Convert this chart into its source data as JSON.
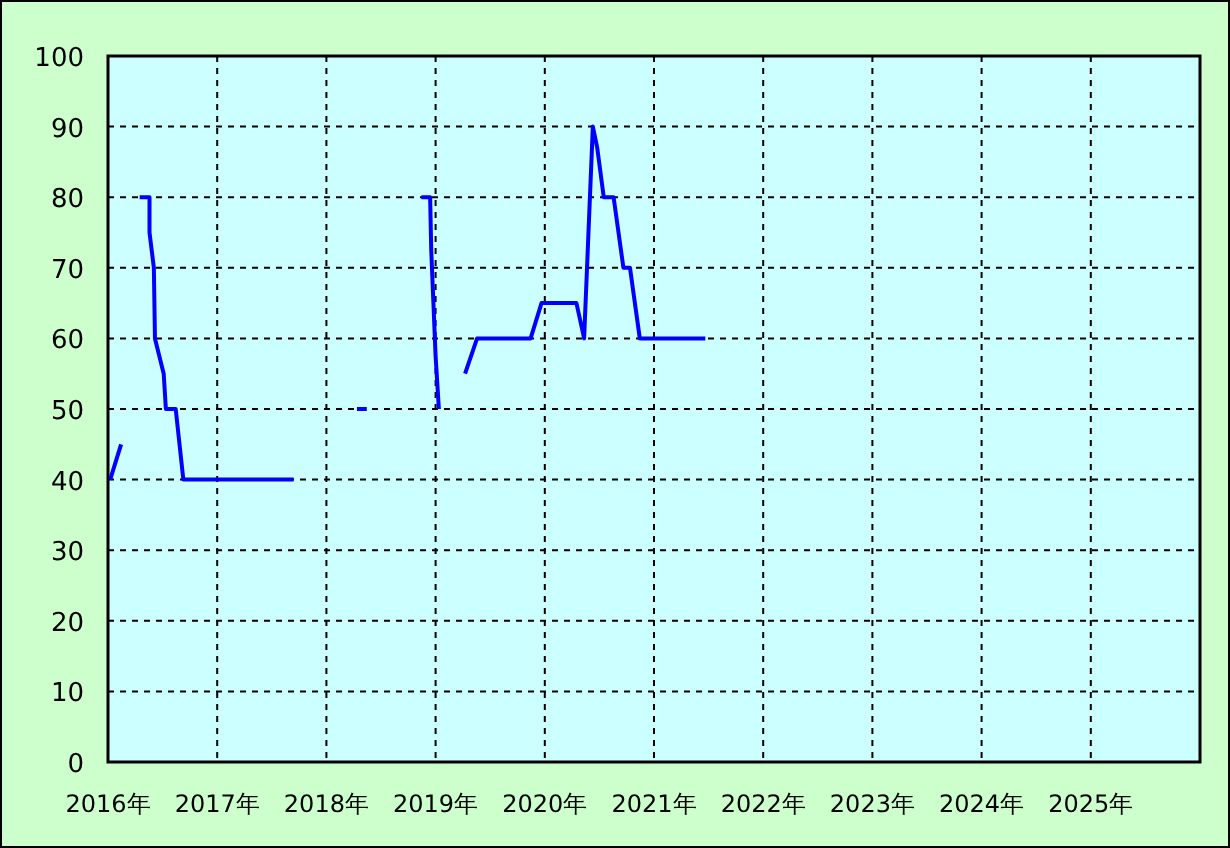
{
  "chart_data": {
    "type": "line",
    "x": [
      2016.02,
      2016.12,
      null,
      2016.29,
      2016.38,
      2016.38,
      2016.42,
      2016.43,
      2016.51,
      2016.53,
      2016.62,
      2016.69,
      2017.7,
      null,
      2018.28,
      2018.37,
      null,
      2018.87,
      2018.95,
      2018.96,
      2018.98,
      2019.0,
      2019.03,
      null,
      2019.27,
      2019.38,
      2019.87,
      2019.97,
      2020.29,
      2020.36,
      2020.44,
      2020.48,
      2020.54,
      2020.63,
      2020.72,
      2020.78,
      2020.87,
      2021.47
    ],
    "series": [
      {
        "color": "#0000ff",
        "values": [
          40,
          45,
          null,
          80,
          80,
          75,
          70,
          60,
          55,
          50,
          50,
          40,
          40,
          null,
          50,
          50,
          null,
          80,
          80,
          72.5,
          65,
          57.5,
          50,
          null,
          55,
          60,
          60,
          65,
          65,
          60,
          90,
          87,
          80,
          80,
          70,
          70,
          60,
          60
        ]
      }
    ],
    "xlim": [
      2016,
      2026
    ],
    "xticks": [
      {
        "value": 2016,
        "label": "2016年"
      },
      {
        "value": 2017,
        "label": "2017年"
      },
      {
        "value": 2018,
        "label": "2018年"
      },
      {
        "value": 2019,
        "label": "2019年"
      },
      {
        "value": 2020,
        "label": "2020年"
      },
      {
        "value": 2021,
        "label": "2021年"
      },
      {
        "value": 2022,
        "label": "2022年"
      },
      {
        "value": 2023,
        "label": "2023年"
      },
      {
        "value": 2024,
        "label": "2024年"
      },
      {
        "value": 2025,
        "label": "2025年"
      }
    ],
    "ylim": [
      0,
      100
    ],
    "yticks": [
      0,
      10,
      20,
      30,
      40,
      50,
      60,
      70,
      80,
      90,
      100
    ],
    "grid": true,
    "line_style": "solid",
    "marker": "none"
  }
}
